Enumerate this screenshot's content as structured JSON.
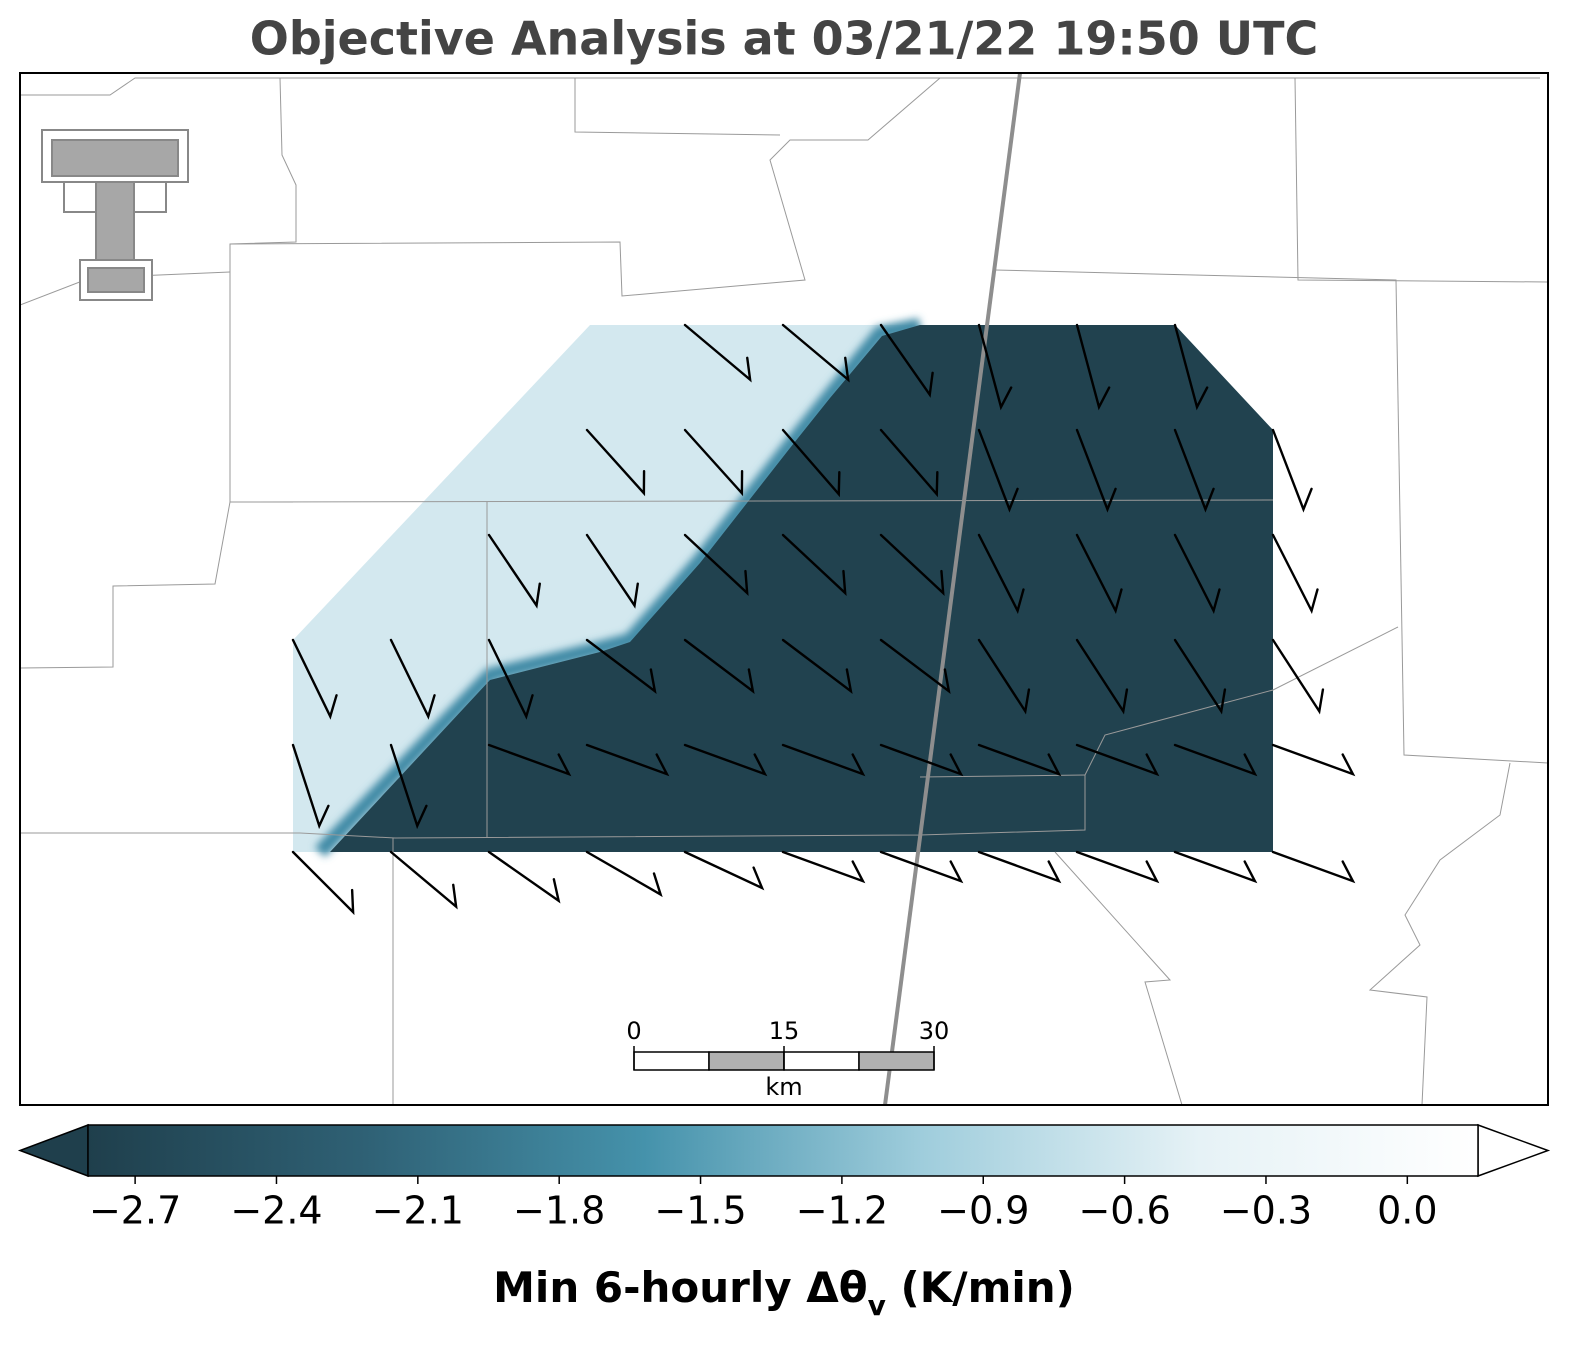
{
  "title": "Objective Analysis at 03/21/22 19:50 UTC",
  "colorbar": {
    "clim": [
      -2.8,
      0.15
    ],
    "extend": "both",
    "colors": [
      "#1f3f4c",
      "#2f6175",
      "#4592ab",
      "#9fcddc",
      "#e6f2f6",
      "#ffffff"
    ],
    "ticks": [
      {
        "value": -2.7,
        "label": "−2.7"
      },
      {
        "value": -2.4,
        "label": "−2.4"
      },
      {
        "value": -2.1,
        "label": "−2.1"
      },
      {
        "value": -1.8,
        "label": "−1.8"
      },
      {
        "value": -1.5,
        "label": "−1.5"
      },
      {
        "value": -1.2,
        "label": "−1.2"
      },
      {
        "value": -0.9,
        "label": "−0.9"
      },
      {
        "value": -0.6,
        "label": "−0.6"
      },
      {
        "value": -0.3,
        "label": "−0.3"
      },
      {
        "value": 0,
        "label": "0.0"
      }
    ],
    "label": {
      "main": "Min 6-hourly Δθ",
      "subscript": "v",
      "tail": " (K/min)"
    }
  },
  "scale_bar": {
    "lim": [
      0,
      30
    ],
    "ticks": [
      0,
      15,
      30
    ],
    "unit": "km"
  }
}
